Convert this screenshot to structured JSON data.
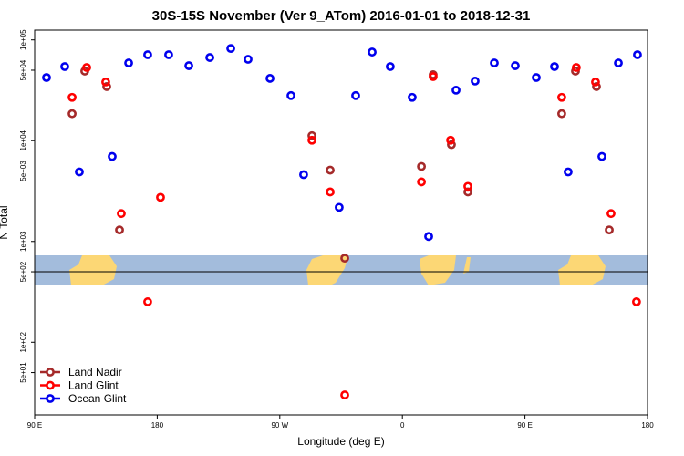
{
  "chart_data": {
    "type": "scatter",
    "title": "30S-15S November (Ver 9_ATom)   2016-01-01 to 2018-12-31",
    "x_label": "Longitude (deg E)",
    "y_label": "N Total",
    "log_y": true,
    "legend": "bottom-left",
    "reference_line": 500,
    "xlim": [
      90,
      540
    ],
    "xticks": [
      {
        "value": 90,
        "label": "90 E"
      },
      {
        "value": 180,
        "label": "180"
      },
      {
        "value": 270,
        "label": "90 W"
      },
      {
        "value": 360,
        "label": "0"
      },
      {
        "value": 450,
        "label": "90 E"
      },
      {
        "value": 540,
        "label": "180"
      }
    ],
    "ylim": [
      19,
      125000
    ],
    "yticks": [
      {
        "value": 100000,
        "label": "1e+05"
      },
      {
        "value": 50000,
        "label": "5e+04"
      },
      {
        "value": 10000,
        "label": "1e+04"
      },
      {
        "value": 5000,
        "label": "5e+03"
      },
      {
        "value": 1000,
        "label": "1e+03"
      },
      {
        "value": 500,
        "label": "5e+02"
      },
      {
        "value": 100,
        "label": "1e+02"
      },
      {
        "value": 50,
        "label": "5e+01"
      }
    ],
    "series": [
      {
        "name": "Land Nadir",
        "color": "#a52a2a",
        "x": [
          117.5,
          126.8,
          142.9,
          152.3,
          293.6,
          307,
          317.7,
          374,
          382.6,
          396,
          408.1,
          477,
          487.1,
          502.5,
          511.9
        ],
        "values": [
          18500,
          49000,
          34400,
          1300,
          11200,
          5100,
          682,
          5550,
          45100,
          9120,
          3100,
          18500,
          49000,
          34400,
          1300
        ]
      },
      {
        "name": "Land Glint",
        "color": "#ff0000",
        "x": [
          117.5,
          128.2,
          142.2,
          153.6,
          173,
          182.4,
          293.6,
          307,
          317.7,
          374,
          382.6,
          395.4,
          408.1,
          477,
          487.7,
          501.8,
          513.2,
          531.9
        ],
        "values": [
          26900,
          53200,
          38200,
          1890,
          252,
          2740,
          10100,
          3100,
          30,
          3900,
          43200,
          10100,
          3520,
          26900,
          53200,
          38200,
          1890,
          252
        ]
      },
      {
        "name": "Ocean Glint",
        "color": "#0000ee",
        "x": [
          98.7,
          112.1,
          122.8,
          146.9,
          159,
          173,
          188.4,
          203.2,
          218.6,
          234,
          246.7,
          262.8,
          278.2,
          287.5,
          313.6,
          325.7,
          337.8,
          351.1,
          367.2,
          379.3,
          399.4,
          413.4,
          427.5,
          442.9,
          458.3,
          471.7,
          481.7,
          506.5,
          518.6,
          532.6
        ],
        "values": [
          42300,
          54300,
          4900,
          6970,
          59000,
          71200,
          71200,
          55400,
          66800,
          82200,
          64200,
          41500,
          28000,
          4600,
          2180,
          28000,
          75700,
          54300,
          26900,
          1120,
          31700,
          39000,
          59000,
          55400,
          42300,
          54300,
          4900,
          6970,
          59000,
          71200
        ]
      }
    ]
  }
}
